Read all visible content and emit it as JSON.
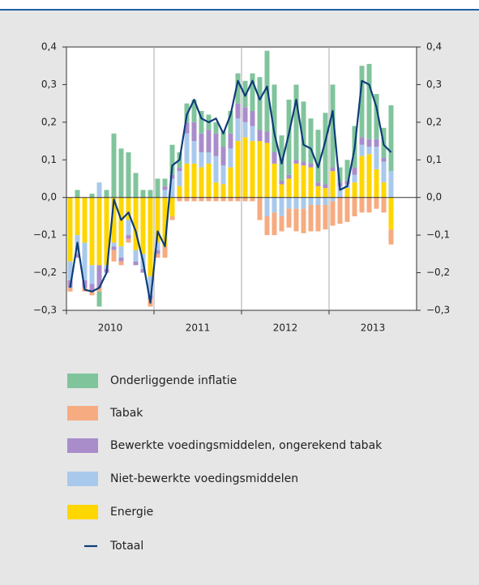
{
  "chart_data": {
    "type": "stacked_bar_line",
    "categories": [
      null,
      null,
      null,
      null,
      null,
      null,
      null,
      null,
      null,
      null,
      null,
      null,
      null,
      null,
      null,
      null,
      null,
      null,
      null,
      null,
      null,
      null,
      null,
      null,
      null,
      null,
      null,
      null,
      null,
      null,
      null,
      null,
      null,
      null,
      null,
      null,
      null,
      null,
      null,
      null,
      null,
      null,
      null,
      null,
      null
    ],
    "xtick_labels": [
      "2010",
      "2011",
      "2012",
      "2013"
    ],
    "ylim": [
      -0.3,
      0.4
    ],
    "yticks": [
      {
        "value": -0.3,
        "label": "−0,3"
      },
      {
        "value": -0.2,
        "label": "−0,2"
      },
      {
        "value": -0.1,
        "label": "−0,1"
      },
      {
        "value": 0,
        "label": "0,0"
      },
      {
        "value": 0.1,
        "label": "0,1"
      },
      {
        "value": 0.2,
        "label": "0,2"
      },
      {
        "value": 0.3,
        "label": "0,3"
      },
      {
        "value": 0.4,
        "label": "0,4"
      }
    ],
    "series": [
      {
        "name": "Onderliggende inflatie",
        "color": "#80c49c",
        "type": "bar",
        "values": [
          0,
          0.02,
          0,
          0.01,
          -0.04,
          0.02,
          0.17,
          0.13,
          0.12,
          0.065,
          0.02,
          0.02,
          0.05,
          0.02,
          0.08,
          0.04,
          0.05,
          0.06,
          0.06,
          0.04,
          0.03,
          0.04,
          0.06,
          0.08,
          0.07,
          0.1,
          0.14,
          0.215,
          0.18,
          0.12,
          0.2,
          0.2,
          0.16,
          0.12,
          0.14,
          0.19,
          0.22,
          0.04,
          0.055,
          0.11,
          0.19,
          0.2,
          0.12,
          0.08,
          0.175
        ]
      },
      {
        "name": "Tabak",
        "color": "#f6ab80",
        "type": "bar",
        "values": [
          -0.01,
          0,
          -0.01,
          -0.01,
          -0.01,
          0,
          -0.03,
          -0.01,
          -0.01,
          0,
          0,
          -0.02,
          -0.01,
          -0.03,
          -0.01,
          -0.01,
          -0.01,
          -0.01,
          -0.01,
          -0.01,
          -0.01,
          -0.01,
          -0.01,
          -0.01,
          -0.01,
          -0.01,
          -0.06,
          -0.05,
          -0.06,
          -0.04,
          -0.05,
          -0.06,
          -0.065,
          -0.07,
          -0.07,
          -0.065,
          -0.065,
          -0.07,
          -0.065,
          -0.05,
          -0.04,
          -0.04,
          -0.03,
          -0.04,
          -0.04
        ]
      },
      {
        "name": "Bewerkte voedingsmiddelen, ongerekend tabak",
        "color": "#a98dcb",
        "type": "bar",
        "values": [
          -0.02,
          -0.01,
          -0.02,
          -0.02,
          -0.06,
          -0.01,
          -0.01,
          -0.01,
          -0.01,
          -0.01,
          -0.01,
          -0.01,
          -0.01,
          0.01,
          0.01,
          0.01,
          0.03,
          0.05,
          0.05,
          0.06,
          0.06,
          0.05,
          0.04,
          0.04,
          0.04,
          0.04,
          0.03,
          0.03,
          0.03,
          0.01,
          0.01,
          0.01,
          0.01,
          0.01,
          0.01,
          0.01,
          0.01,
          0.01,
          0.01,
          0.02,
          0.02,
          0.02,
          0.02,
          0.01,
          0
        ]
      },
      {
        "name": "Niet-bewerkte voedingsmiddelen",
        "color": "#a9c9ec",
        "type": "bar",
        "values": [
          -0.05,
          -0.05,
          -0.1,
          -0.05,
          0.04,
          -0.01,
          -0.01,
          -0.03,
          -0.04,
          -0.03,
          -0.04,
          -0.05,
          -0.02,
          0.02,
          0.05,
          0.04,
          0.08,
          0.06,
          0.04,
          0.03,
          0.07,
          0.05,
          0.05,
          0.06,
          0.04,
          0.04,
          0,
          -0.05,
          -0.04,
          -0.05,
          -0.03,
          -0.03,
          -0.03,
          -0.02,
          -0.02,
          -0.02,
          -0.01,
          0.03,
          0.01,
          0.02,
          0.03,
          0.02,
          0.06,
          0.055,
          0.07
        ]
      },
      {
        "name": "Energie",
        "color": "#ffd600",
        "type": "bar",
        "values": [
          -0.17,
          -0.1,
          -0.12,
          -0.18,
          -0.18,
          -0.18,
          -0.12,
          -0.13,
          -0.06,
          -0.14,
          -0.15,
          -0.21,
          -0.12,
          -0.13,
          -0.05,
          0.03,
          0.09,
          0.09,
          0.08,
          0.09,
          0.04,
          0.035,
          0.08,
          0.15,
          0.16,
          0.15,
          0.15,
          0.145,
          0.09,
          0.035,
          0.05,
          0.09,
          0.085,
          0.08,
          0.03,
          0.025,
          0.07,
          0,
          0.025,
          0.04,
          0.11,
          0.115,
          0.075,
          0.04,
          -0.085
        ]
      },
      {
        "name": "Totaal",
        "color": "#0e3d78",
        "type": "line",
        "values": [
          -0.24,
          -0.12,
          -0.245,
          -0.25,
          -0.24,
          -0.2,
          -0.005,
          -0.06,
          -0.04,
          -0.09,
          -0.17,
          -0.28,
          -0.09,
          -0.13,
          0.085,
          0.1,
          0.22,
          0.26,
          0.21,
          0.2,
          0.21,
          0.17,
          0.22,
          0.31,
          0.27,
          0.31,
          0.26,
          0.295,
          0.17,
          0.09,
          0.17,
          0.26,
          0.14,
          0.13,
          0.08,
          0.15,
          0.23,
          0.02,
          0.03,
          0.13,
          0.31,
          0.3,
          0.24,
          0.14,
          0.12
        ]
      }
    ]
  }
}
